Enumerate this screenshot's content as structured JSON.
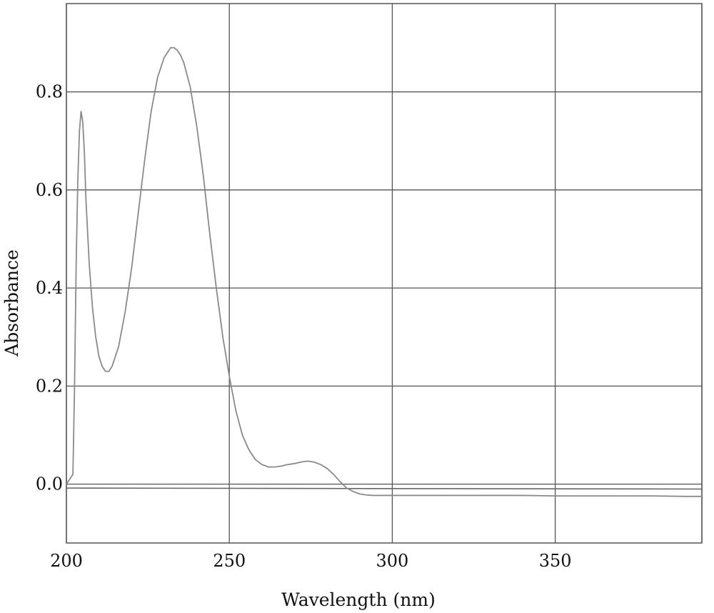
{
  "chart_data": {
    "type": "line",
    "title": "",
    "xlabel": "Wavelength (nm)",
    "ylabel": "Absorbance",
    "xlim": [
      200,
      395
    ],
    "ylim": [
      -0.12,
      0.98
    ],
    "grid": true,
    "x_ticks": [
      200,
      250,
      300,
      350
    ],
    "x_tick_labels": [
      "200",
      "250",
      "300",
      "350"
    ],
    "y_ticks": [
      0.0,
      0.2,
      0.4,
      0.6,
      0.8
    ],
    "y_tick_labels": [
      "0.0",
      "0.2",
      "0.4",
      "0.6",
      "0.8"
    ],
    "colors": {
      "line": "#8a8a8a",
      "grid": "#555555",
      "text": "#111111"
    },
    "series": [
      {
        "name": "",
        "x": [
          200,
          201,
          202,
          202.5,
          203,
          203.5,
          204,
          204.5,
          205,
          205.5,
          206,
          207,
          208,
          209,
          210,
          211,
          212,
          213,
          214,
          216,
          218,
          220,
          222,
          224,
          226,
          228,
          230,
          232,
          233,
          234,
          235,
          236,
          238,
          240,
          242,
          244,
          246,
          248,
          250,
          252,
          254,
          256,
          258,
          260,
          262,
          264,
          266,
          268,
          270,
          272,
          274,
          276,
          278,
          280,
          282,
          284,
          286,
          288,
          290,
          292,
          294,
          300,
          310,
          320,
          330,
          340,
          350,
          360,
          370,
          380,
          390,
          395
        ],
        "y": [
          0.0,
          0.01,
          0.02,
          0.2,
          0.45,
          0.62,
          0.72,
          0.76,
          0.74,
          0.68,
          0.58,
          0.45,
          0.36,
          0.3,
          0.26,
          0.24,
          0.23,
          0.23,
          0.24,
          0.28,
          0.35,
          0.44,
          0.55,
          0.66,
          0.76,
          0.83,
          0.87,
          0.89,
          0.89,
          0.885,
          0.875,
          0.86,
          0.81,
          0.73,
          0.63,
          0.51,
          0.4,
          0.3,
          0.22,
          0.15,
          0.1,
          0.07,
          0.05,
          0.04,
          0.035,
          0.035,
          0.037,
          0.04,
          0.042,
          0.045,
          0.047,
          0.045,
          0.04,
          0.032,
          0.02,
          0.005,
          -0.008,
          -0.015,
          -0.02,
          -0.022,
          -0.023,
          -0.023,
          -0.023,
          -0.023,
          -0.023,
          -0.023,
          -0.024,
          -0.024,
          -0.024,
          -0.024,
          -0.025,
          -0.025
        ]
      }
    ],
    "baseline_line": {
      "name": "",
      "x": [
        200,
        395
      ],
      "y": [
        -0.008,
        -0.01
      ]
    }
  }
}
